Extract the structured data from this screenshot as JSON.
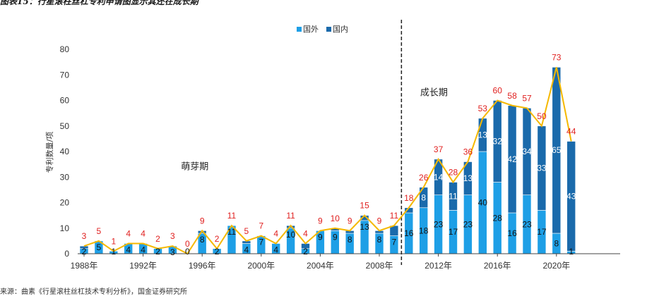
{
  "figure": {
    "title": "图表15：行星滚柱丝杠专利申请图显示其还在成长期",
    "source": "来源：曲素《行星滚柱丝杠技术专利分析》，国金证券研究所"
  },
  "chart_data": {
    "type": "bar",
    "stacked": true,
    "ylabel": "专利数量/项",
    "ylim": [
      0,
      80
    ],
    "yticks": [
      0,
      10,
      20,
      30,
      40,
      50,
      60,
      70,
      80
    ],
    "years": [
      1988,
      1989,
      1990,
      1991,
      1992,
      1993,
      1994,
      1995,
      1996,
      1997,
      1998,
      1999,
      2000,
      2001,
      2002,
      2003,
      2004,
      2005,
      2006,
      2007,
      2008,
      2009,
      2010,
      2011,
      2012,
      2013,
      2014,
      2015,
      2016,
      2017,
      2018,
      2019,
      2020,
      2021
    ],
    "xtick_labels": [
      "1988年",
      "1992年",
      "1996年",
      "2000年",
      "2004年",
      "2008年",
      "2012年",
      "2016年",
      "2020年"
    ],
    "xtick_years": [
      1988,
      1992,
      1996,
      2000,
      2004,
      2008,
      2012,
      2016,
      2020
    ],
    "series": [
      {
        "name": "国外",
        "color": "#1e9fe6",
        "values": [
          2,
          5,
          1,
          4,
          4,
          2,
          3,
          0,
          8,
          2,
          11,
          4,
          7,
          4,
          10,
          2,
          9,
          9,
          8,
          13,
          8,
          7,
          16,
          18,
          23,
          17,
          23,
          40,
          28,
          16,
          23,
          17,
          8,
          1
        ]
      },
      {
        "name": "国内",
        "color": "#1a6aab",
        "values": [
          1,
          0,
          0,
          0,
          0,
          0,
          0,
          0,
          1,
          0,
          0,
          1,
          0,
          0,
          1,
          2,
          0,
          1,
          1,
          2,
          1,
          4,
          2,
          8,
          14,
          11,
          13,
          13,
          32,
          42,
          34,
          33,
          65,
          43
        ]
      }
    ],
    "totals": [
      3,
      5,
      1,
      4,
      4,
      2,
      3,
      0,
      9,
      2,
      11,
      5,
      7,
      4,
      11,
      4,
      9,
      10,
      9,
      15,
      9,
      11,
      18,
      26,
      37,
      28,
      36,
      53,
      60,
      58,
      57,
      50,
      73,
      44
    ],
    "total_line_color": "#f5b800",
    "total_label_color": "#e0201f",
    "foreign_labels_years": [
      1988,
      1989,
      1990,
      1991,
      1992,
      1993,
      1994,
      1995,
      1996,
      1997,
      1998,
      1999,
      2000,
      2001,
      2002,
      2003,
      2004,
      2005,
      2006,
      2007,
      2008,
      2009,
      2010,
      2011,
      2012,
      2013,
      2014,
      2015,
      2016,
      2017,
      2018,
      2019,
      2020,
      2021
    ],
    "domestic_labels_years": [
      2011,
      2012,
      2013,
      2014,
      2015,
      2016,
      2017,
      2018,
      2019,
      2020,
      2021
    ],
    "phase_divider_year": 2009.5,
    "annotations": [
      {
        "text": "萌芽期",
        "year": 1995.5,
        "value": 33
      },
      {
        "text": "成长期",
        "year": 2011.7,
        "value": 62
      }
    ],
    "legend": {
      "position": "top-center",
      "items": [
        "国外",
        "国内"
      ]
    }
  }
}
